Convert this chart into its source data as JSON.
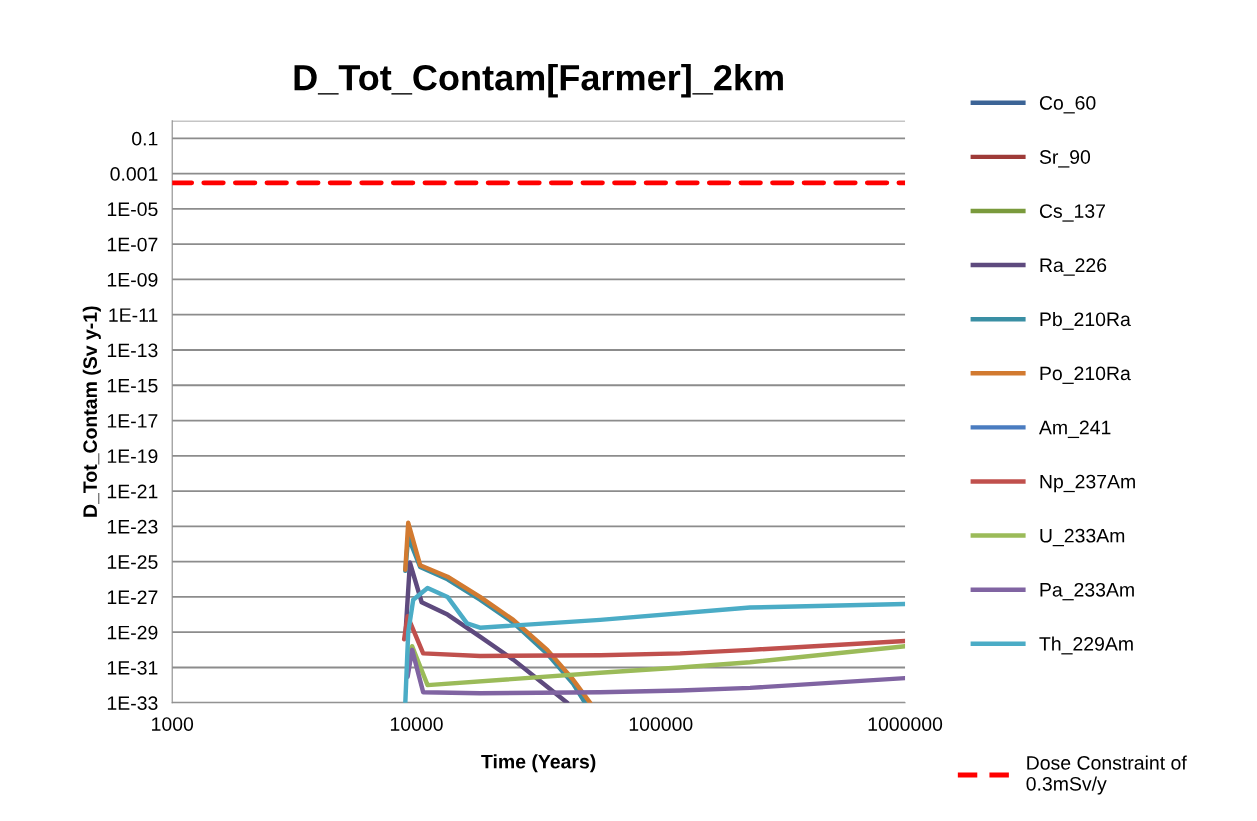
{
  "chart_data": {
    "type": "line",
    "title": "D_Tot_Contam[Farmer]_2km",
    "xlabel": "Time (Years)",
    "ylabel": "D_Tot_Contam (Sv y-1)",
    "log": "xy",
    "grid": "y",
    "legend": "right",
    "line_style": "solid",
    "marker": "none",
    "xlim": [
      1000,
      1000000
    ],
    "xticks": [
      1000,
      10000,
      100000,
      1000000
    ],
    "ylim": [
      1e-33,
      1
    ],
    "yticks": [
      0.1,
      0.001,
      {
        "value": 1e-05,
        "label": "1E-05"
      },
      {
        "value": 1e-07,
        "label": "1E-07"
      },
      {
        "value": 1e-09,
        "label": "1E-09"
      },
      {
        "value": 1e-11,
        "label": "1E-11"
      },
      {
        "value": 1e-13,
        "label": "1E-13"
      },
      {
        "value": 1e-15,
        "label": "1E-15"
      },
      {
        "value": 1e-17,
        "label": "1E-17"
      },
      {
        "value": 1e-19,
        "label": "1E-19"
      },
      {
        "value": 1e-21,
        "label": "1E-21"
      },
      {
        "value": 1e-23,
        "label": "1E-23"
      },
      {
        "value": 1e-25,
        "label": "1E-25"
      },
      {
        "value": 1e-27,
        "label": "1E-27"
      },
      {
        "value": 1e-29,
        "label": "1E-29"
      },
      {
        "value": 1e-31,
        "label": "1E-31"
      },
      {
        "value": 1e-33,
        "label": "1E-33"
      }
    ],
    "series": [
      {
        "name": "Co_60",
        "color": "#3c6496"
      },
      {
        "name": "Sr_90",
        "color": "#9e3b38"
      },
      {
        "name": "Cs_137",
        "color": "#7a9a3c"
      },
      {
        "name": "Ra_226",
        "color": "#5e4a7e",
        "x": [
          9000,
          9400,
          10500,
          13400,
          18200,
          24900,
          34300,
          41400
        ],
        "values": [
          5.6e-30,
          8.9e-26,
          5e-28,
          1e-28,
          5.6e-30,
          2.8e-31,
          8e-33,
          1e-33
        ]
      },
      {
        "name": "Pb_210Ra",
        "color": "#3a8fa4",
        "x": [
          9000,
          9250,
          10350,
          13400,
          18200,
          24900,
          34300,
          43800,
          49000
        ],
        "values": [
          3e-26,
          2.5e-24,
          5e-26,
          1e-26,
          7e-28,
          3.5e-29,
          6e-31,
          1.2e-32,
          1e-33
        ]
      },
      {
        "name": "Po_210Ra",
        "color": "#d27a30",
        "x": [
          9000,
          9250,
          10350,
          13400,
          18200,
          24900,
          34300,
          43800,
          51400
        ],
        "values": [
          3.5e-26,
          1.6e-23,
          6.3e-26,
          1.4e-26,
          1e-27,
          5e-29,
          1e-30,
          2e-32,
          1e-33
        ]
      },
      {
        "name": "Am_241",
        "color": "#4a7cc0"
      },
      {
        "name": "Np_237Am",
        "color": "#c0504d",
        "x": [
          8900,
          9200,
          10650,
          18200,
          56500,
          120000,
          232000,
          1000000
        ],
        "values": [
          4e-30,
          8e-29,
          6.3e-31,
          4.5e-31,
          5e-31,
          6.3e-31,
          1e-30,
          3.2e-30
        ]
      },
      {
        "name": "U_233Am",
        "color": "#9bbb59",
        "x": [
          9250,
          9600,
          11100,
          56500,
          120000,
          232000,
          1000000
        ],
        "values": [
          6e-31,
          1.6e-30,
          1e-32,
          5e-32,
          1e-31,
          2e-31,
          1.6e-30
        ]
      },
      {
        "name": "Pa_233Am",
        "color": "#8064a2",
        "x": [
          9200,
          9600,
          10650,
          18200,
          56500,
          120000,
          232000,
          1000000
        ],
        "values": [
          3e-32,
          1e-30,
          4e-33,
          3.5e-33,
          4e-33,
          5e-33,
          7e-33,
          2.5e-32
        ]
      },
      {
        "name": "Th_229Am",
        "color": "#4bacc6",
        "x": [
          9000,
          9250,
          9700,
          11100,
          13400,
          16100,
          18200,
          56500,
          232000,
          1000000
        ],
        "values": [
          1e-33,
          1e-29,
          7e-28,
          3.2e-27,
          1e-27,
          3.2e-29,
          1.8e-29,
          5e-29,
          2.5e-28,
          4e-28
        ]
      }
    ],
    "ref_lines": [
      {
        "axis": "y",
        "value": 0.0003,
        "label": "Dose Constraint of 0.3mSv/y",
        "color": "#ff0000",
        "line_style": "dashed"
      }
    ]
  }
}
